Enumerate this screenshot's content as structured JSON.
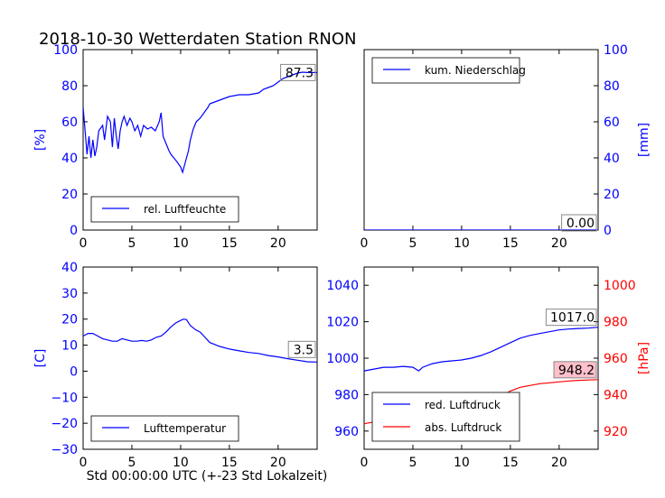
{
  "figure_title": "2018-10-30 Wetterdaten Station RNON",
  "colors": {
    "primary": "#0000ff",
    "secondary": "#ff0000",
    "annotation_box": "#ffc0cb"
  },
  "chart_data": [
    {
      "type": "line",
      "panel": "top-left",
      "ylabel": "[%]",
      "xlim": [
        0,
        24
      ],
      "ylim": [
        0,
        100
      ],
      "xticks": [
        "0",
        "5",
        "10",
        "15",
        "20"
      ],
      "yticks": [
        "0",
        "20",
        "40",
        "60",
        "80",
        "100"
      ],
      "legend": {
        "placement": "lower-left"
      },
      "annotation": "87.3",
      "series": [
        {
          "name": "rel. Luftfeuchte",
          "color": "#0000ff",
          "x": [
            0,
            0.2,
            0.4,
            0.6,
            0.8,
            1.0,
            1.2,
            1.4,
            1.6,
            2.0,
            2.2,
            2.5,
            2.8,
            3.0,
            3.2,
            3.4,
            3.6,
            3.8,
            4.0,
            4.2,
            4.5,
            4.8,
            5.0,
            5.3,
            5.6,
            5.9,
            6.2,
            6.6,
            7.0,
            7.4,
            7.8,
            8.0,
            8.2,
            8.5,
            8.8,
            9.0,
            9.3,
            9.6,
            10.0,
            10.2,
            10.5,
            10.8,
            11.0,
            11.3,
            11.6,
            12.0,
            12.4,
            12.8,
            13.0,
            13.5,
            14.0,
            15.0,
            16.0,
            17.0,
            18.0,
            18.5,
            19.0,
            19.5,
            20.0,
            20.5,
            21.0,
            21.5,
            22.0,
            22.5,
            23.0,
            23.5,
            24.0
          ],
          "y": [
            68,
            55,
            42,
            52,
            40,
            50,
            41,
            46,
            55,
            58,
            50,
            63,
            60,
            46,
            62,
            52,
            45,
            55,
            60,
            63,
            58,
            62,
            60,
            55,
            58,
            52,
            58,
            56,
            57,
            55,
            60,
            65,
            52,
            48,
            44,
            42,
            40,
            38,
            35,
            32,
            38,
            44,
            50,
            56,
            60,
            62,
            65,
            68,
            70,
            71,
            72,
            74,
            75,
            75,
            76,
            78,
            79,
            80,
            82,
            84,
            85,
            86,
            87,
            87.5,
            87.3,
            87.3,
            87.3
          ]
        }
      ]
    },
    {
      "type": "line",
      "panel": "top-right",
      "ylabel": "[mm]",
      "xlim": [
        0,
        24
      ],
      "ylim": [
        0,
        100
      ],
      "xticks": [
        "0",
        "5",
        "10",
        "15",
        "20"
      ],
      "yticks": [
        "0",
        "20",
        "40",
        "60",
        "80",
        "100"
      ],
      "legend": {
        "placement": "upper-left"
      },
      "annotation": "0.00",
      "series": [
        {
          "name": "kum. Niederschlag",
          "color": "#0000ff",
          "x": [
            0,
            24
          ],
          "y": [
            0,
            0
          ]
        }
      ]
    },
    {
      "type": "line",
      "panel": "bottom-left",
      "xlabel": "Std 00:00:00 UTC (+-23 Std Lokalzeit)",
      "ylabel": "[C]",
      "xlim": [
        0,
        24
      ],
      "ylim": [
        -30,
        40
      ],
      "xticks": [
        "0",
        "5",
        "10",
        "15",
        "20"
      ],
      "yticks": [
        "−30",
        "−20",
        "−10",
        "0",
        "10",
        "20",
        "30",
        "40"
      ],
      "legend": {
        "placement": "lower-left"
      },
      "annotation": "3.5",
      "series": [
        {
          "name": "Lufttemperatur",
          "color": "#0000ff",
          "x": [
            0,
            0.5,
            1.0,
            1.5,
            2.0,
            2.5,
            3.0,
            3.5,
            4.0,
            4.5,
            5.0,
            5.5,
            6.0,
            6.5,
            7.0,
            7.5,
            8.0,
            8.5,
            9.0,
            9.5,
            10.0,
            10.3,
            10.6,
            11.0,
            11.5,
            12.0,
            12.5,
            13.0,
            14.0,
            15.0,
            16.0,
            17.0,
            18.0,
            19.0,
            20.0,
            21.0,
            22.0,
            23.0,
            24.0
          ],
          "y": [
            13.5,
            14.5,
            14.5,
            13.5,
            12.5,
            12.0,
            11.5,
            11.5,
            12.5,
            12.0,
            11.5,
            11.5,
            11.8,
            11.5,
            12.0,
            13.0,
            13.5,
            15.0,
            17.0,
            18.5,
            19.5,
            20.0,
            19.8,
            17.5,
            16.0,
            15.0,
            13.0,
            11.0,
            9.5,
            8.5,
            7.8,
            7.2,
            6.8,
            6.0,
            5.5,
            4.8,
            4.2,
            3.6,
            3.5
          ]
        }
      ]
    },
    {
      "type": "line",
      "panel": "bottom-right",
      "ylabel": "[hPa]",
      "xlim": [
        0,
        24
      ],
      "ylim_left": [
        950,
        1050
      ],
      "ylim_right": [
        910,
        1010
      ],
      "xticks": [
        "0",
        "5",
        "10",
        "15",
        "20"
      ],
      "yticks_left": [
        "960",
        "980",
        "1000",
        "1020",
        "1040"
      ],
      "yticks_right": [
        "920",
        "940",
        "960",
        "980",
        "1000"
      ],
      "legend": {
        "placement": "lower-left"
      },
      "annotations": [
        "1017.0",
        "948.2"
      ],
      "series": [
        {
          "name": "red. Luftdruck",
          "color": "#0000ff",
          "axis": "left",
          "x": [
            0,
            1,
            2,
            3,
            4,
            5,
            5.3,
            5.6,
            6,
            7,
            8,
            9,
            10,
            11,
            12,
            13,
            14,
            15,
            16,
            17,
            18,
            19,
            20,
            21,
            22,
            23,
            24
          ],
          "y": [
            993,
            994,
            995,
            995,
            995.5,
            995,
            994,
            993,
            995,
            997,
            998,
            998.5,
            999,
            1000,
            1001.5,
            1003.5,
            1006,
            1008.5,
            1011,
            1012.5,
            1013.5,
            1014.5,
            1015.5,
            1016,
            1016.3,
            1016.5,
            1017.0
          ]
        },
        {
          "name": "abs. Luftdruck",
          "color": "#ff0000",
          "axis": "right",
          "x": [
            0,
            1,
            2,
            3,
            4,
            5,
            5.3,
            5.6,
            6,
            7,
            8,
            9,
            10,
            11,
            12,
            13,
            14,
            15,
            16,
            17,
            18,
            19,
            20,
            21,
            22,
            23,
            24
          ],
          "y": [
            924,
            925,
            925.5,
            926,
            926,
            926,
            925,
            924,
            926,
            928,
            929.5,
            930.5,
            932,
            933.5,
            935,
            937,
            939,
            942,
            944,
            945,
            946,
            946.5,
            947,
            947.5,
            947.8,
            948.0,
            948.2
          ]
        }
      ]
    }
  ]
}
